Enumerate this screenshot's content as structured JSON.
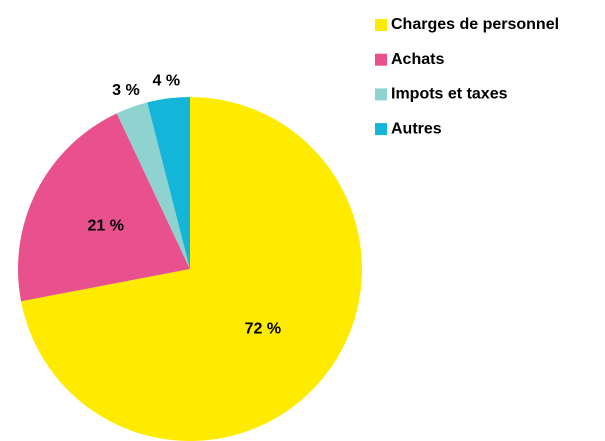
{
  "chart_data": {
    "type": "pie",
    "categories": [
      "Charges de personnel",
      "Achats",
      "Impots et taxes",
      "Autres"
    ],
    "values": [
      72,
      21,
      3,
      4
    ],
    "value_labels": [
      "72 %",
      "21 %",
      "3 %",
      "4 %"
    ],
    "colors": [
      "#ffeb00",
      "#e8508e",
      "#8ed3cf",
      "#13b5d8"
    ],
    "legend": "top-right"
  }
}
